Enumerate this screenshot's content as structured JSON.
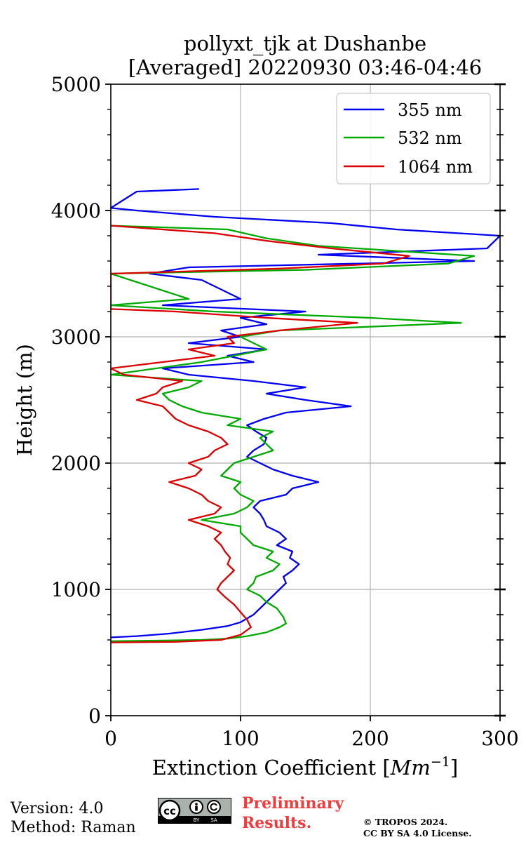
{
  "chart_data": {
    "type": "line",
    "title_line1": "pollyxt_tjk at Dushanbe",
    "title_line2": "[Averaged] 20220930 03:46-04:46",
    "xlabel": "Extinction Coefficient [",
    "xlabel_unit": "Mm",
    "xlabel_exp": "−1",
    "xlabel_close": "]",
    "ylabel": "Height (m)",
    "xlim": [
      0,
      300
    ],
    "ylim": [
      0,
      5000
    ],
    "xticks": [
      "0",
      "100",
      "200",
      "300"
    ],
    "yticks": [
      "0",
      "1000",
      "2000",
      "3000",
      "4000",
      "5000"
    ],
    "grid": true,
    "legend_position": "top-right",
    "series": [
      {
        "name": "355 nm",
        "color": "#0000ee",
        "points": [
          [
            0,
            620
          ],
          [
            20,
            630
          ],
          [
            45,
            650
          ],
          [
            70,
            680
          ],
          [
            90,
            710
          ],
          [
            100,
            740
          ],
          [
            105,
            770
          ],
          [
            110,
            800
          ],
          [
            115,
            850
          ],
          [
            120,
            900
          ],
          [
            125,
            950
          ],
          [
            130,
            1000
          ],
          [
            135,
            1050
          ],
          [
            133,
            1100
          ],
          [
            140,
            1150
          ],
          [
            145,
            1200
          ],
          [
            138,
            1250
          ],
          [
            140,
            1300
          ],
          [
            128,
            1350
          ],
          [
            135,
            1400
          ],
          [
            130,
            1450
          ],
          [
            120,
            1500
          ],
          [
            118,
            1550
          ],
          [
            115,
            1600
          ],
          [
            110,
            1650
          ],
          [
            115,
            1700
          ],
          [
            135,
            1750
          ],
          [
            140,
            1800
          ],
          [
            160,
            1850
          ],
          [
            140,
            1900
          ],
          [
            125,
            1950
          ],
          [
            115,
            2000
          ],
          [
            105,
            2050
          ],
          [
            110,
            2100
          ],
          [
            118,
            2150
          ],
          [
            120,
            2200
          ],
          [
            112,
            2250
          ],
          [
            105,
            2300
          ],
          [
            118,
            2350
          ],
          [
            135,
            2400
          ],
          [
            185,
            2450
          ],
          [
            150,
            2500
          ],
          [
            120,
            2550
          ],
          [
            150,
            2600
          ],
          [
            110,
            2650
          ],
          [
            60,
            2700
          ],
          [
            40,
            2750
          ],
          [
            110,
            2800
          ],
          [
            90,
            2850
          ],
          [
            120,
            2900
          ],
          [
            60,
            2950
          ],
          [
            100,
            3000
          ],
          [
            85,
            3050
          ],
          [
            120,
            3100
          ],
          [
            100,
            3150
          ],
          [
            150,
            3200
          ],
          [
            40,
            3250
          ],
          [
            100,
            3300
          ],
          [
            70,
            3450
          ],
          [
            30,
            3500
          ],
          [
            60,
            3550
          ],
          [
            280,
            3600
          ],
          [
            160,
            3650
          ],
          [
            290,
            3700
          ],
          [
            300,
            3800
          ],
          [
            220,
            3850
          ],
          [
            170,
            3900
          ],
          [
            80,
            3950
          ],
          [
            20,
            4000
          ],
          [
            0,
            4020
          ],
          [
            20,
            4150
          ],
          [
            68,
            4170
          ]
        ]
      },
      {
        "name": "532 nm",
        "color": "#00aa00",
        "points": [
          [
            0,
            590
          ],
          [
            40,
            595
          ],
          [
            70,
            600
          ],
          [
            90,
            610
          ],
          [
            105,
            630
          ],
          [
            120,
            660
          ],
          [
            130,
            700
          ],
          [
            135,
            730
          ],
          [
            133,
            780
          ],
          [
            128,
            850
          ],
          [
            120,
            900
          ],
          [
            115,
            950
          ],
          [
            105,
            1000
          ],
          [
            110,
            1050
          ],
          [
            112,
            1100
          ],
          [
            125,
            1150
          ],
          [
            130,
            1200
          ],
          [
            120,
            1250
          ],
          [
            125,
            1300
          ],
          [
            110,
            1350
          ],
          [
            105,
            1400
          ],
          [
            100,
            1450
          ],
          [
            100,
            1500
          ],
          [
            70,
            1550
          ],
          [
            95,
            1600
          ],
          [
            105,
            1650
          ],
          [
            110,
            1700
          ],
          [
            100,
            1750
          ],
          [
            95,
            1800
          ],
          [
            100,
            1850
          ],
          [
            85,
            1900
          ],
          [
            90,
            1950
          ],
          [
            95,
            2000
          ],
          [
            110,
            2050
          ],
          [
            125,
            2100
          ],
          [
            120,
            2150
          ],
          [
            115,
            2200
          ],
          [
            125,
            2250
          ],
          [
            90,
            2300
          ],
          [
            100,
            2350
          ],
          [
            70,
            2400
          ],
          [
            55,
            2450
          ],
          [
            45,
            2500
          ],
          [
            40,
            2550
          ],
          [
            60,
            2600
          ],
          [
            70,
            2650
          ],
          [
            0,
            2700
          ],
          [
            70,
            2800
          ],
          [
            95,
            2850
          ],
          [
            120,
            2900
          ],
          [
            100,
            3000
          ],
          [
            130,
            3050
          ],
          [
            270,
            3110
          ],
          [
            200,
            3150
          ],
          [
            80,
            3200
          ],
          [
            0,
            3250
          ],
          [
            60,
            3300
          ],
          [
            0,
            3500
          ],
          [
            150,
            3530
          ],
          [
            260,
            3580
          ],
          [
            280,
            3640
          ],
          [
            220,
            3680
          ],
          [
            160,
            3720
          ],
          [
            120,
            3780
          ],
          [
            90,
            3850
          ],
          [
            0,
            3880
          ]
        ]
      },
      {
        "name": "1064 nm",
        "color": "#dd0000",
        "points": [
          [
            0,
            580
          ],
          [
            50,
            585
          ],
          [
            85,
            600
          ],
          [
            100,
            640
          ],
          [
            108,
            700
          ],
          [
            105,
            760
          ],
          [
            100,
            820
          ],
          [
            95,
            880
          ],
          [
            88,
            940
          ],
          [
            82,
            1000
          ],
          [
            85,
            1050
          ],
          [
            90,
            1100
          ],
          [
            95,
            1150
          ],
          [
            90,
            1200
          ],
          [
            92,
            1250
          ],
          [
            88,
            1300
          ],
          [
            85,
            1350
          ],
          [
            80,
            1400
          ],
          [
            85,
            1450
          ],
          [
            75,
            1500
          ],
          [
            60,
            1550
          ],
          [
            80,
            1600
          ],
          [
            85,
            1650
          ],
          [
            75,
            1700
          ],
          [
            70,
            1750
          ],
          [
            60,
            1800
          ],
          [
            45,
            1850
          ],
          [
            65,
            1900
          ],
          [
            70,
            1950
          ],
          [
            60,
            2000
          ],
          [
            75,
            2050
          ],
          [
            80,
            2100
          ],
          [
            90,
            2150
          ],
          [
            85,
            2200
          ],
          [
            75,
            2250
          ],
          [
            60,
            2300
          ],
          [
            50,
            2350
          ],
          [
            45,
            2400
          ],
          [
            40,
            2450
          ],
          [
            20,
            2500
          ],
          [
            35,
            2550
          ],
          [
            40,
            2600
          ],
          [
            55,
            2650
          ],
          [
            10,
            2700
          ],
          [
            0,
            2750
          ],
          [
            80,
            2850
          ],
          [
            60,
            2900
          ],
          [
            95,
            2950
          ],
          [
            90,
            3000
          ],
          [
            130,
            3050
          ],
          [
            190,
            3110
          ],
          [
            120,
            3150
          ],
          [
            50,
            3200
          ],
          [
            0,
            3220
          ],
          [
            0,
            3500
          ],
          [
            130,
            3540
          ],
          [
            210,
            3580
          ],
          [
            230,
            3640
          ],
          [
            170,
            3700
          ],
          [
            120,
            3760
          ],
          [
            80,
            3820
          ],
          [
            0,
            3880
          ]
        ]
      }
    ]
  },
  "footer": {
    "version_label": "Version: 4.0",
    "method_label": "Method: Raman",
    "prelim_line1": "Preliminary",
    "prelim_line2": "Results.",
    "copyright_line1": "© TROPOS 2024.",
    "copyright_line2": "CC BY SA 4.0 License."
  },
  "badge": {
    "cc": "cc",
    "by": "BY",
    "sa": "SA"
  }
}
